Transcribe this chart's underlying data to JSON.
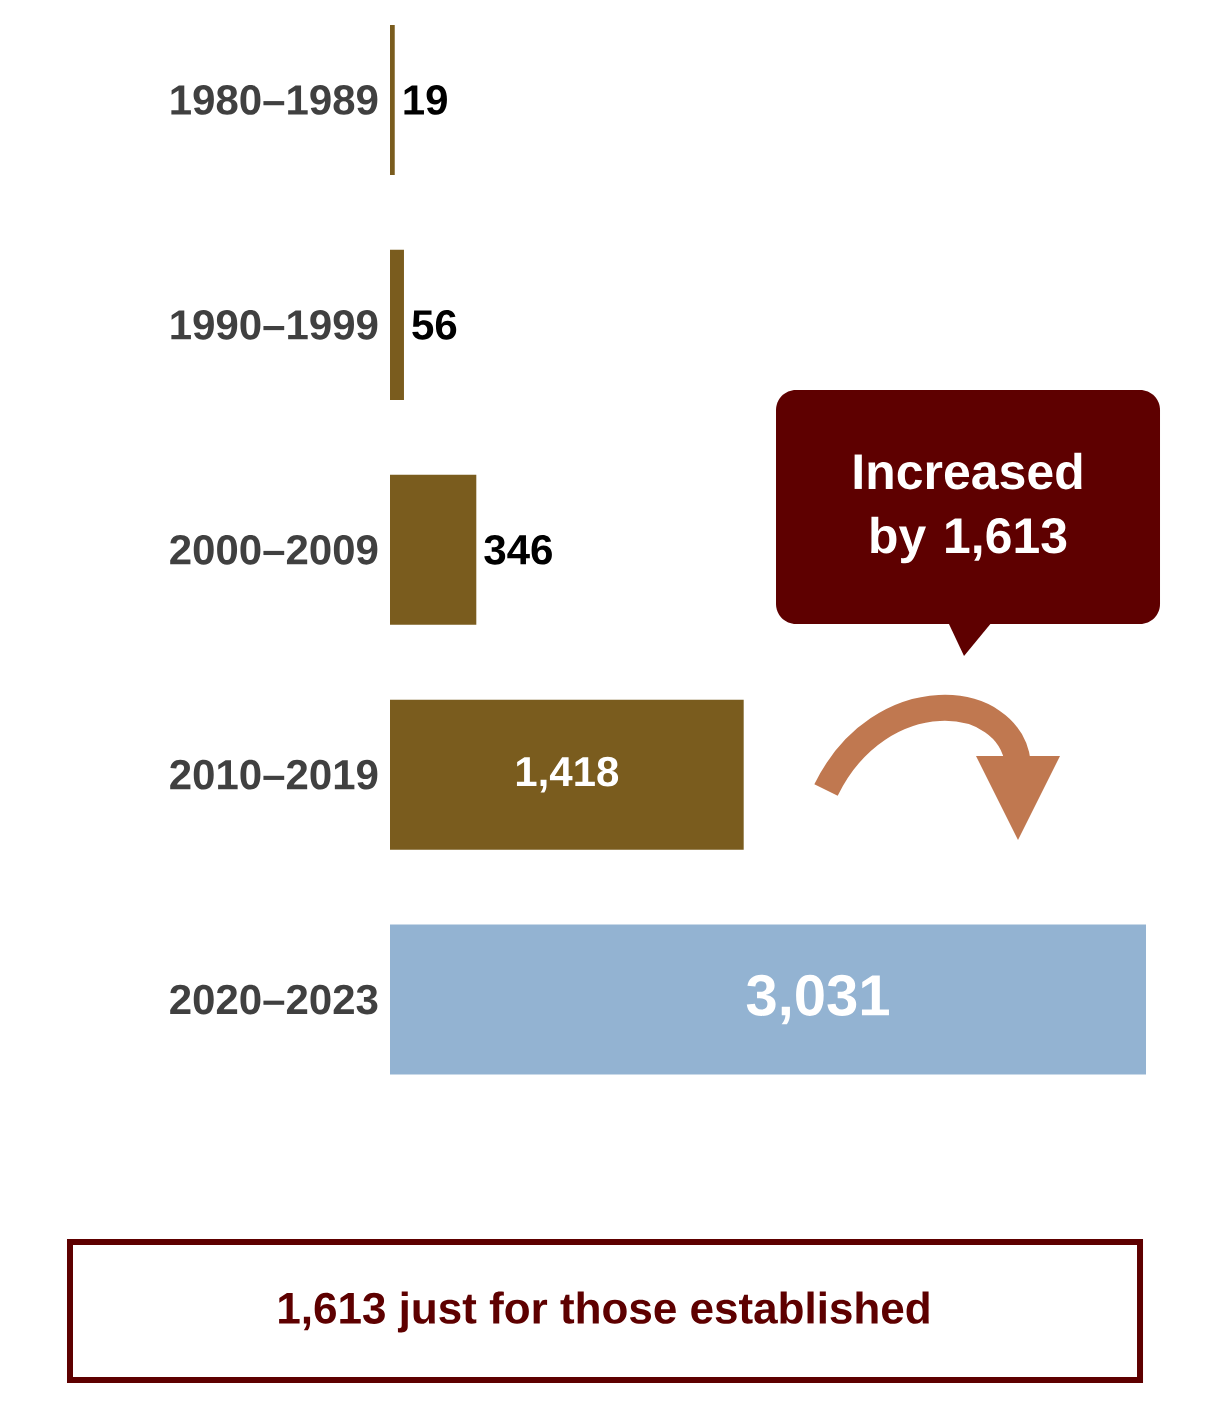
{
  "chart_data": {
    "type": "bar",
    "orientation": "horizontal",
    "categories": [
      "1980–1989",
      "1990–1999",
      "2000–2009",
      "2010–2019",
      "2020–2023"
    ],
    "values": [
      19,
      56,
      346,
      1418,
      3031
    ],
    "colors": [
      "#7a5c1e",
      "#7a5c1e",
      "#7a5c1e",
      "#7a5c1e",
      "#93b3d2"
    ],
    "value_labels": [
      "19",
      "56",
      "346",
      "1,418",
      "3,031"
    ],
    "annotations": [
      "Increased by 1,613",
      "1,613 just for those established"
    ]
  }
}
